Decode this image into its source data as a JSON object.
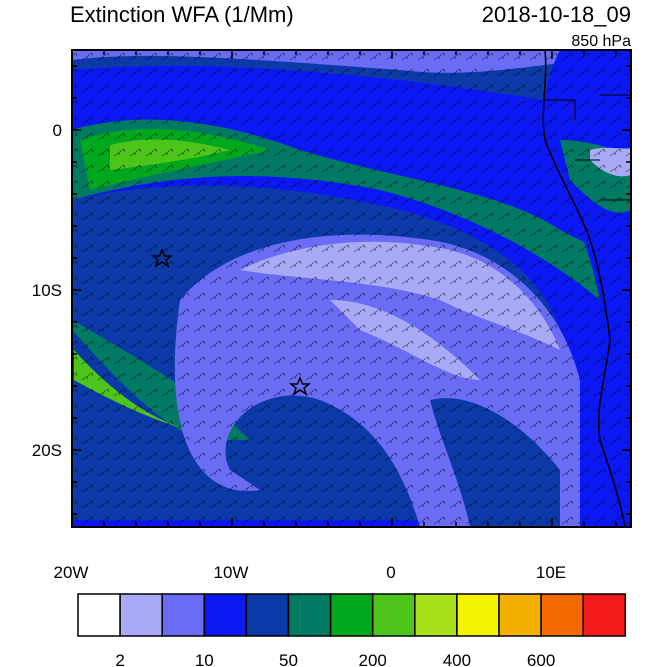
{
  "header": {
    "title": "Extinction WFA (1/Mm)",
    "timestamp": "2018-10-18_09",
    "level": "850 hPa"
  },
  "axes": {
    "lat_labels": [
      "0",
      "10S",
      "20S"
    ],
    "lon_labels": [
      "20W",
      "10W",
      "0",
      "10E"
    ]
  },
  "colorbar": {
    "colors": [
      "#ffffff",
      "#a8aaf6",
      "#6a6cf6",
      "#0c18f4",
      "#0b3aa8",
      "#007a62",
      "#00a81e",
      "#4cc41a",
      "#a8e01a",
      "#f4f400",
      "#f4b000",
      "#f46a00",
      "#f41a1a"
    ],
    "labels": [
      "2",
      "10",
      "50",
      "200",
      "400",
      "600"
    ]
  }
}
